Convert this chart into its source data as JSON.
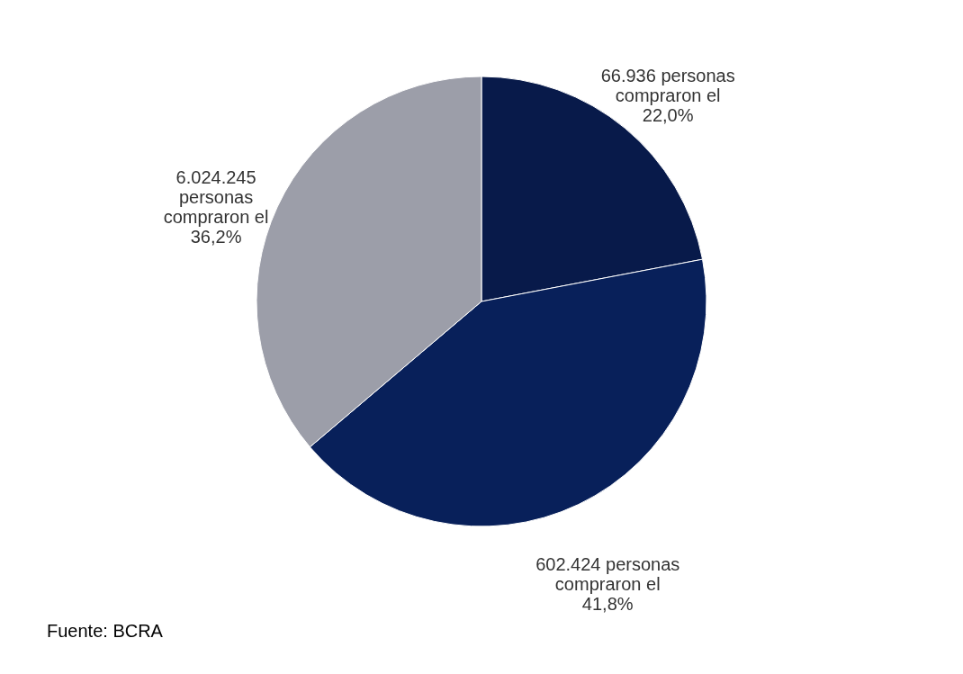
{
  "chart_data": {
    "type": "pie",
    "categories": [
      "66.936 personas compraron el 22,0%",
      "602.424 personas compraron el 41,8%",
      "6.024.245 personas compraron el 36,2%"
    ],
    "values": [
      22.0,
      41.8,
      36.2
    ],
    "colors": [
      "#081a4a",
      "#08205a",
      "#9c9ea9"
    ],
    "annotations": [
      "Fuente: BCRA"
    ]
  }
}
